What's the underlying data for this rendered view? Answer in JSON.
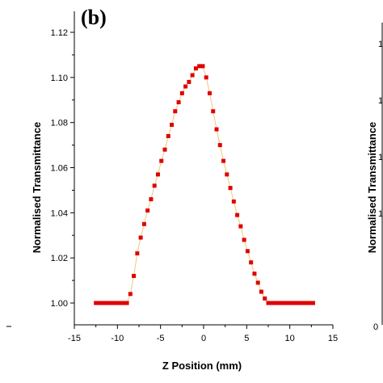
{
  "chart_data": {
    "type": "scatter",
    "panel_label": "(b)",
    "xlabel": "Z Position (mm)",
    "ylabel": "Normalised Transmittance",
    "xlim": [
      -15,
      15
    ],
    "ylim": [
      0.995,
      1.125
    ],
    "x_ticks": [
      -15,
      -10,
      -5,
      0,
      5,
      10,
      15
    ],
    "x_tick_labels": [
      "-15",
      "-10",
      "-5",
      "0",
      "5",
      "10",
      "15"
    ],
    "y_ticks": [
      1.0,
      1.02,
      1.04,
      1.06,
      1.08,
      1.1,
      1.12
    ],
    "y_tick_labels": [
      "1.00",
      "1.02",
      "1.04",
      "1.06",
      "1.08",
      "1.10",
      "1.12"
    ],
    "marker_color": "#e00000",
    "line_color": "#f2c77a",
    "series": [
      {
        "x": [
          -12.5,
          -12.1,
          -11.7,
          -11.3,
          -10.9,
          -10.5,
          -10.1,
          -9.7,
          -9.3,
          -8.9,
          -8.5,
          -8.1,
          -7.7,
          -7.3,
          -6.9,
          -6.5,
          -6.1,
          -5.7,
          -5.3,
          -4.9,
          -4.5,
          -4.1,
          -3.7,
          -3.3,
          -2.9,
          -2.5,
          -2.1,
          -1.7,
          -1.3,
          -0.9,
          -0.5,
          -0.1,
          0.3,
          0.7,
          1.1,
          1.5,
          1.9,
          2.3,
          2.7,
          3.1,
          3.5,
          3.9,
          4.3,
          4.7,
          5.1,
          5.5,
          5.9,
          6.3,
          6.7,
          7.1,
          7.5,
          7.9,
          8.3,
          8.7,
          9.1,
          9.5,
          9.9,
          10.3,
          10.7,
          11.1,
          11.5,
          11.9,
          12.3,
          12.7
        ],
        "y": [
          1.0,
          1.0,
          1.0,
          1.0,
          1.0,
          1.0,
          1.0,
          1.0,
          1.0,
          1.0,
          1.004,
          1.012,
          1.022,
          1.029,
          1.035,
          1.041,
          1.046,
          1.052,
          1.057,
          1.063,
          1.068,
          1.074,
          1.079,
          1.085,
          1.089,
          1.093,
          1.096,
          1.098,
          1.101,
          1.104,
          1.105,
          1.105,
          1.1,
          1.093,
          1.085,
          1.077,
          1.07,
          1.063,
          1.057,
          1.051,
          1.045,
          1.039,
          1.034,
          1.028,
          1.023,
          1.018,
          1.013,
          1.009,
          1.005,
          1.002,
          1.0,
          1.0,
          1.0,
          1.0,
          1.0,
          1.0,
          1.0,
          1.0,
          1.0,
          1.0,
          1.0,
          1.0,
          1.0,
          1.0
        ]
      }
    ]
  },
  "side_panel": {
    "ylabel": "Normalised Transmittance",
    "tick_labels": [
      "1",
      "1",
      "1",
      "1",
      "0"
    ]
  }
}
